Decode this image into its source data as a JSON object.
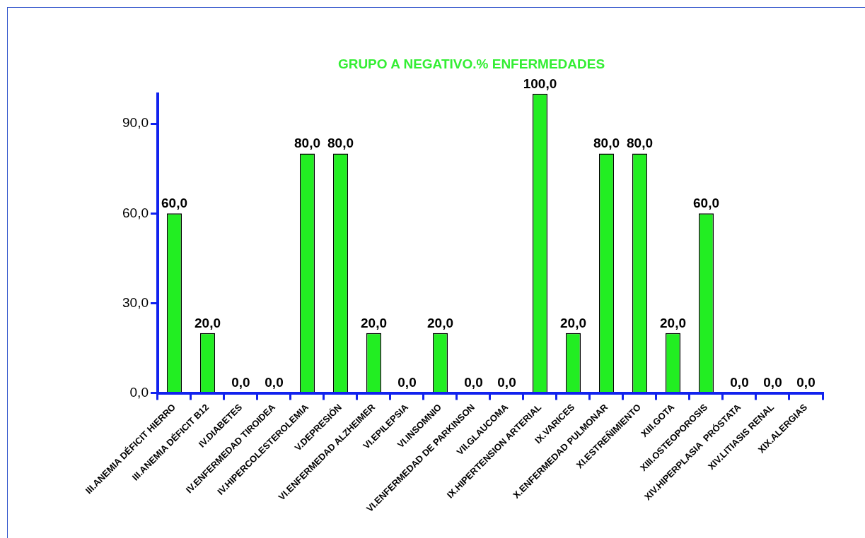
{
  "chart_data": {
    "type": "bar",
    "title": "GRUPO A NEGATIVO.% ENFERMEDADES",
    "categories": [
      "III.ANEMIA DÉFICIT HIERRO",
      "III.ANEMIA DÉFICIT B12",
      "IV.DIABETES",
      "IV.ENFERMEDAD TIROIDEA",
      "IV.HIPERCOLESTEROLEMIA",
      "V.DEPRESIÓN",
      "VI.ENFERMEDAD ALZHEIMER",
      "VI.EPILEPSIA",
      "VI.INSOMNIO",
      "VI.ENFERMEDAD DE PARKINSON",
      "VII.GLAUCOMA",
      "IX.HIPERTENSION ARTERIAL",
      "IX.VARICES",
      "X.ENFERMEDAD PULMONAR",
      "XI.ESTREÑIMIENTO",
      "XIII.GOTA",
      "XIII.OSTEOPOROSIS",
      "XIV.HIPERPLASIA  PRÓSTATA",
      "XIV.LITIASIS RENAL",
      "XIX.ALERGIAS"
    ],
    "values": [
      60,
      20,
      0,
      0,
      80,
      80,
      20,
      0,
      20,
      0,
      0,
      100,
      20,
      80,
      80,
      20,
      60,
      0,
      0,
      0
    ],
    "value_labels": [
      "60,0",
      "20,0",
      "0,0",
      "0,0",
      "80,0",
      "80,0",
      "20,0",
      "0,0",
      "20,0",
      "0,0",
      "0,0",
      "100,0",
      "20,0",
      "80,0",
      "80,0",
      "20,0",
      "60,0",
      "0,0",
      "0,0",
      "0,0"
    ],
    "color": "#22ee22",
    "ylim": [
      0,
      100
    ],
    "yticks": [
      {
        "value": 0,
        "label": "0,0"
      },
      {
        "value": 30,
        "label": "30,0"
      },
      {
        "value": 60,
        "label": "60,0"
      },
      {
        "value": 90,
        "label": "90,0"
      }
    ],
    "grid": false,
    "legend": false
  }
}
